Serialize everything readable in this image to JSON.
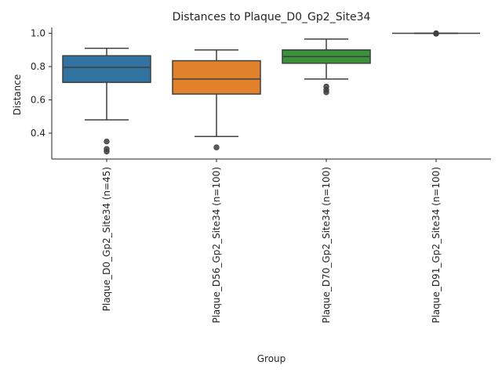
{
  "chart_data": {
    "type": "box",
    "title": "Distances to Plaque_D0_Gp2_Site34",
    "xlabel": "Group",
    "ylabel": "Distance",
    "ylim": [
      0.245,
      1.035
    ],
    "yticks": [
      0.4,
      0.6,
      0.8,
      1.0
    ],
    "ytick_labels": [
      "0.4",
      "0.6",
      "0.8",
      "1.0"
    ],
    "grid": false,
    "groups": [
      {
        "label": "Plaque_D0_Gp2_Site34 (n=45)",
        "color": "#3274a1",
        "whisker_low": 0.48,
        "q1": 0.705,
        "median": 0.795,
        "q3": 0.865,
        "whisker_high": 0.91,
        "outliers": [
          0.35,
          0.305,
          0.29
        ]
      },
      {
        "label": "Plaque_D56_Gp2_Site34 (n=100)",
        "color": "#e1812c",
        "whisker_low": 0.38,
        "q1": 0.635,
        "median": 0.725,
        "q3": 0.835,
        "whisker_high": 0.9,
        "outliers": [
          0.315
        ]
      },
      {
        "label": "Plaque_D70_Gp2_Site34 (n=100)",
        "color": "#3a923a",
        "whisker_low": 0.725,
        "q1": 0.82,
        "median": 0.86,
        "q3": 0.9,
        "whisker_high": 0.965,
        "outliers": [
          0.68,
          0.66,
          0.645
        ]
      },
      {
        "label": "Plaque_D91_Gp2_Site34 (n=100)",
        "color": "#c03d3e",
        "whisker_low": 1.0,
        "q1": 1.0,
        "median": 1.0,
        "q3": 1.0,
        "whisker_high": 1.0,
        "outliers": [
          1.0,
          0.997
        ]
      }
    ]
  }
}
